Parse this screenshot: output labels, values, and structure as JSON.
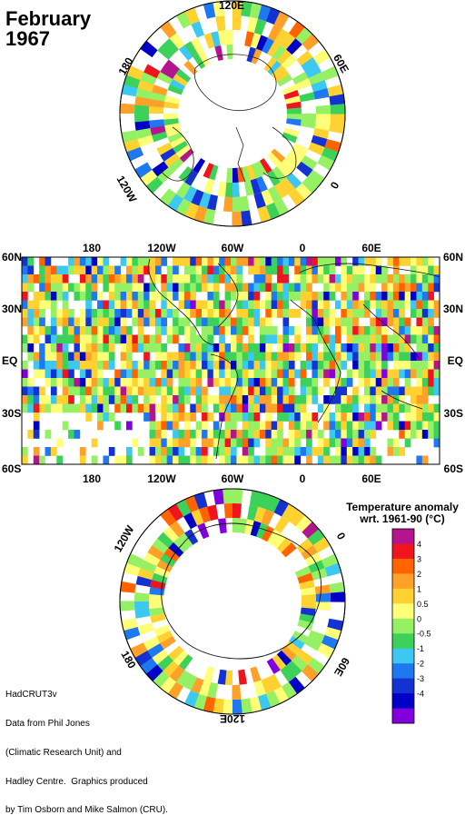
{
  "title": {
    "month": "February",
    "year": "1967"
  },
  "legend": {
    "title_line1": "Temperature anomaly",
    "title_line2": "wrt. 1961-90  (°C)",
    "ticks": [
      "4",
      "3",
      "2",
      "1",
      "0.5",
      "0",
      "-0.5",
      "-1",
      "-2",
      "-3",
      "-4"
    ],
    "colors": [
      "#b4148c",
      "#f0141e",
      "#ff6400",
      "#ffa028",
      "#ffd232",
      "#ffff78",
      "#96f064",
      "#3cd25a",
      "#3cc8f0",
      "#1e78f0",
      "#1432d2",
      "#0000c8",
      "#8200dc"
    ]
  },
  "map": {
    "top_lat_labels": [
      "180",
      "120W",
      "60W",
      "0",
      "60E"
    ],
    "bottom_lon_labels": [
      "180",
      "120W",
      "60W",
      "0",
      "60E"
    ],
    "left_lat_labels": [
      "60N",
      "30N",
      "EQ",
      "30S",
      "60S"
    ],
    "right_lat_labels": [
      "60N",
      "30N",
      "EQ",
      "30S",
      "60S"
    ]
  },
  "north_polar": {
    "labels": [
      "120E",
      "60E",
      "0",
      "120W",
      "180"
    ]
  },
  "south_polar": {
    "labels": [
      "0",
      "120W",
      "180",
      "120E",
      "60E"
    ]
  },
  "credits": {
    "line1": "HadCRUT3v",
    "line2": "Data from Phil Jones",
    "line3": "(Climatic Research Unit) and",
    "line4": "Hadley Centre.  Graphics produced",
    "line5": "by Tim Osborn and Mike Salmon (CRU)."
  }
}
